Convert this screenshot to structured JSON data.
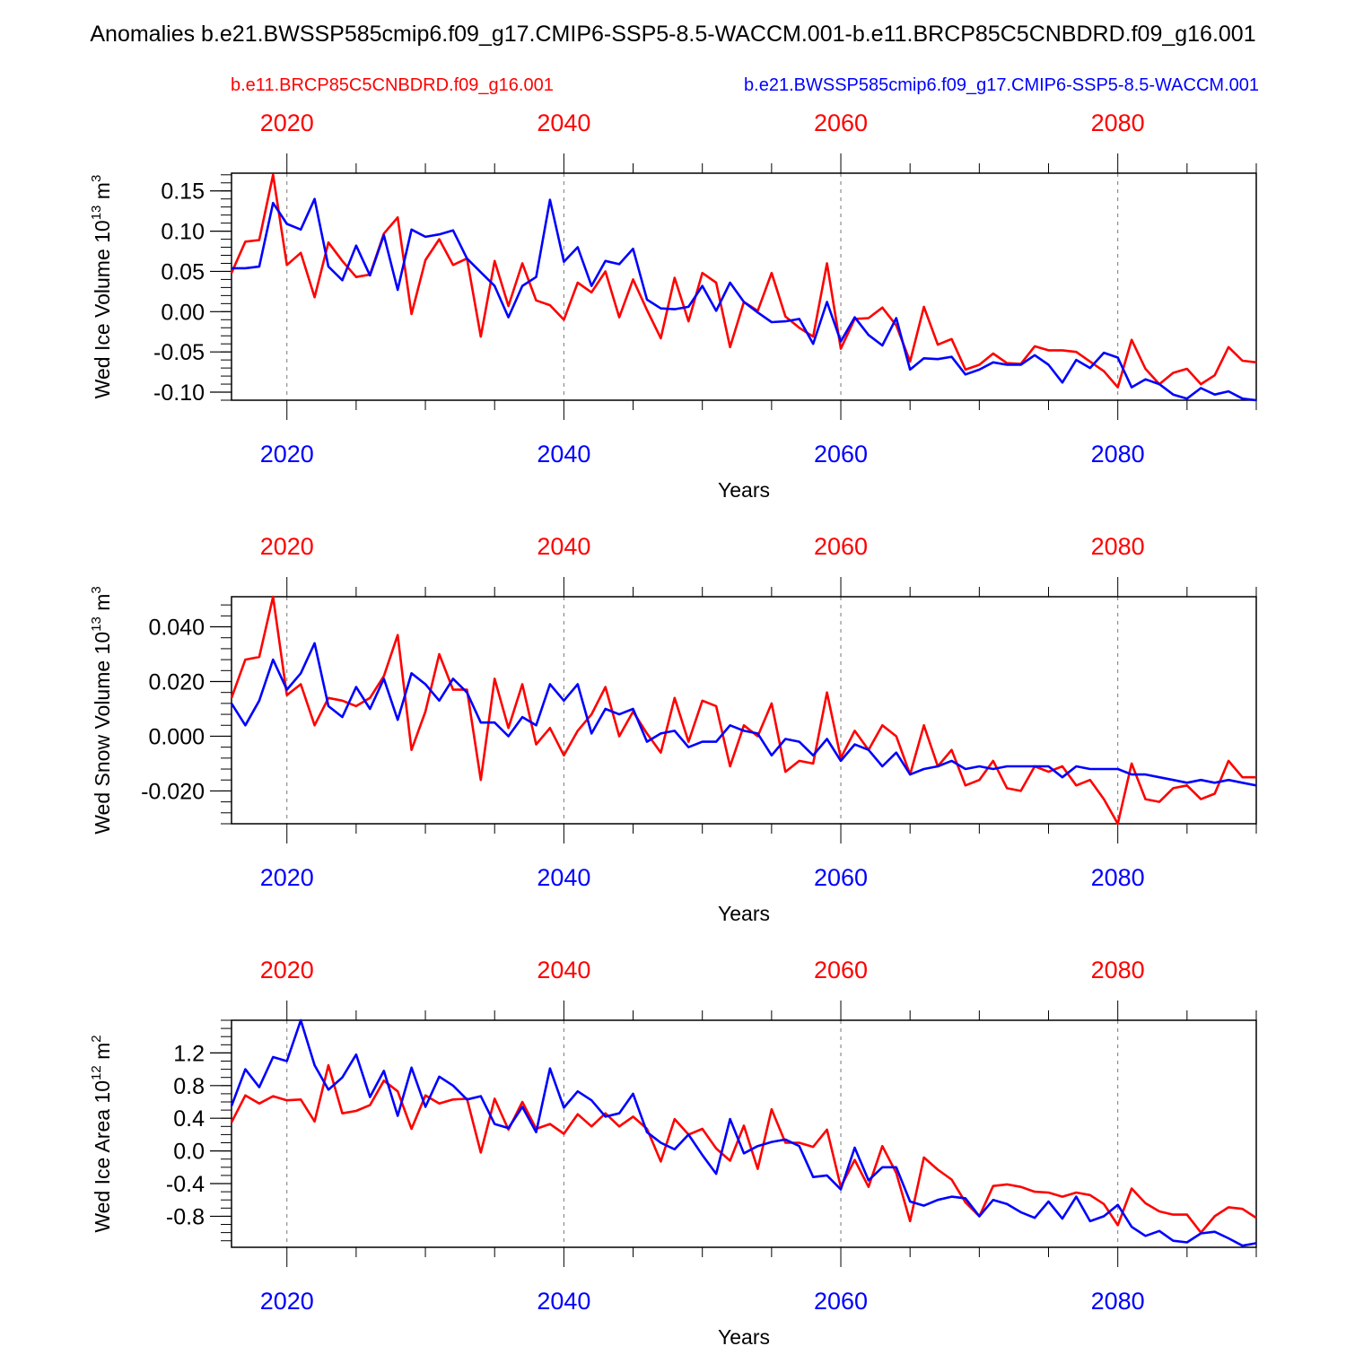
{
  "title": "Anomalies b.e21.BWSSP585cmip6.f09_g17.CMIP6-SSP5-8.5-WACCM.001-b.e11.BRCP85C5CNBDRD.f09_g16.001",
  "colors": {
    "red": "#ff0000",
    "blue": "#0000ff"
  },
  "chart_data": [
    {
      "type": "line",
      "ylabel": "Wed Ice Volume 10",
      "ylabel_exp": "13",
      "ylabel_unit": " m",
      "ylabel_unit_exp": "3",
      "xlabel": "Years",
      "xlim": [
        2016,
        2090
      ],
      "ylim": [
        -0.11,
        0.172
      ],
      "yticks": [
        -0.1,
        -0.05,
        0.0,
        0.05,
        0.1,
        0.15
      ],
      "ytick_labels": [
        "-0.10",
        "-0.05",
        "0.00",
        "0.05",
        "0.10",
        "0.15"
      ],
      "yminor": 0.01,
      "xticks": [
        2020,
        2040,
        2060,
        2080
      ],
      "xtick_labels_red": [
        "2020",
        "2040",
        "2060",
        "2080"
      ],
      "xtick_labels_blue": [
        "2020",
        "2040",
        "2060",
        "2080"
      ],
      "series": [
        {
          "name": "b.e11.BRCP85C5CNBDRD.f09_g16.001",
          "color": "red",
          "x0": 2016,
          "values": [
            0.048,
            0.087,
            0.089,
            0.17,
            0.058,
            0.073,
            0.018,
            0.086,
            0.063,
            0.043,
            0.046,
            0.097,
            0.117,
            -0.003,
            0.064,
            0.09,
            0.058,
            0.066,
            -0.031,
            0.063,
            0.007,
            0.06,
            0.014,
            0.008,
            -0.01,
            0.036,
            0.024,
            0.05,
            -0.007,
            0.04,
            0.002,
            -0.033,
            0.042,
            -0.012,
            0.048,
            0.036,
            -0.044,
            0.012,
            0.001,
            0.048,
            -0.006,
            -0.02,
            -0.031,
            0.06,
            -0.046,
            -0.009,
            -0.008,
            0.005,
            -0.017,
            -0.062,
            0.006,
            -0.041,
            -0.034,
            -0.072,
            -0.066,
            -0.052,
            -0.064,
            -0.065,
            -0.043,
            -0.048,
            -0.048,
            -0.05,
            -0.062,
            -0.074,
            -0.094,
            -0.035,
            -0.071,
            -0.09,
            -0.076,
            -0.071,
            -0.09,
            -0.079,
            -0.044,
            -0.061,
            -0.063
          ]
        },
        {
          "name": "b.e21.BWSSP585cmip6.f09_g17.CMIP6-SSP5-8.5-WACCM.001",
          "color": "blue",
          "x0": 2016,
          "values": [
            0.054,
            0.054,
            0.056,
            0.135,
            0.109,
            0.102,
            0.14,
            0.056,
            0.039,
            0.082,
            0.045,
            0.095,
            0.027,
            0.102,
            0.093,
            0.096,
            0.101,
            0.066,
            0.049,
            0.032,
            -0.007,
            0.032,
            0.043,
            0.139,
            0.062,
            0.08,
            0.032,
            0.063,
            0.059,
            0.078,
            0.015,
            0.004,
            0.003,
            0.006,
            0.032,
            0.001,
            0.036,
            0.012,
            -0.001,
            -0.013,
            -0.012,
            -0.009,
            -0.04,
            0.012,
            -0.037,
            -0.007,
            -0.029,
            -0.042,
            -0.008,
            -0.072,
            -0.058,
            -0.059,
            -0.056,
            -0.078,
            -0.072,
            -0.063,
            -0.066,
            -0.066,
            -0.054,
            -0.066,
            -0.088,
            -0.06,
            -0.07,
            -0.051,
            -0.057,
            -0.094,
            -0.084,
            -0.09,
            -0.103,
            -0.108,
            -0.095,
            -0.103,
            -0.099,
            -0.108,
            -0.11
          ]
        }
      ]
    },
    {
      "type": "line",
      "ylabel": "Wed Snow Volume 10",
      "ylabel_exp": "13",
      "ylabel_unit": " m",
      "ylabel_unit_exp": "3",
      "xlabel": "Years",
      "xlim": [
        2016,
        2090
      ],
      "ylim": [
        -0.032,
        0.051
      ],
      "yticks": [
        -0.02,
        0.0,
        0.02,
        0.04
      ],
      "ytick_labels": [
        "-0.020",
        "0.000",
        "0.020",
        "0.040"
      ],
      "yminor": 0.004,
      "xticks": [
        2020,
        2040,
        2060,
        2080
      ],
      "xtick_labels_red": [
        "2020",
        "2040",
        "2060",
        "2080"
      ],
      "xtick_labels_blue": [
        "2020",
        "2040",
        "2060",
        "2080"
      ],
      "series": [
        {
          "name": "b.e11.BRCP85C5CNBDRD.f09_g16.001",
          "color": "red",
          "x0": 2016,
          "values": [
            0.014,
            0.028,
            0.029,
            0.051,
            0.015,
            0.019,
            0.004,
            0.014,
            0.013,
            0.011,
            0.014,
            0.022,
            0.037,
            -0.005,
            0.009,
            0.03,
            0.017,
            0.017,
            -0.016,
            0.021,
            0.003,
            0.019,
            -0.003,
            0.003,
            -0.007,
            0.002,
            0.008,
            0.018,
            0.0,
            0.009,
            0.001,
            -0.006,
            0.014,
            -0.002,
            0.013,
            0.011,
            -0.011,
            0.004,
            0.0,
            0.012,
            -0.013,
            -0.009,
            -0.01,
            0.016,
            -0.008,
            0.002,
            -0.005,
            0.004,
            0.0,
            -0.014,
            0.004,
            -0.011,
            -0.005,
            -0.018,
            -0.016,
            -0.009,
            -0.019,
            -0.02,
            -0.011,
            -0.013,
            -0.011,
            -0.018,
            -0.016,
            -0.023,
            -0.032,
            -0.01,
            -0.023,
            -0.024,
            -0.019,
            -0.018,
            -0.023,
            -0.021,
            -0.009,
            -0.015,
            -0.015
          ]
        },
        {
          "name": "b.e21.BWSSP585cmip6.f09_g17.CMIP6-SSP5-8.5-WACCM.001",
          "color": "blue",
          "x0": 2016,
          "values": [
            0.012,
            0.004,
            0.013,
            0.028,
            0.017,
            0.023,
            0.034,
            0.011,
            0.007,
            0.018,
            0.01,
            0.021,
            0.006,
            0.023,
            0.019,
            0.013,
            0.021,
            0.016,
            0.005,
            0.005,
            0.0,
            0.007,
            0.004,
            0.019,
            0.013,
            0.019,
            0.001,
            0.01,
            0.008,
            0.01,
            -0.002,
            0.001,
            0.002,
            -0.004,
            -0.002,
            -0.002,
            0.004,
            0.002,
            0.001,
            -0.007,
            -0.001,
            -0.002,
            -0.007,
            -0.001,
            -0.009,
            -0.003,
            -0.005,
            -0.011,
            -0.006,
            -0.014,
            -0.012,
            -0.011,
            -0.009,
            -0.012,
            -0.011,
            -0.012,
            -0.011,
            -0.011,
            -0.011,
            -0.011,
            -0.015,
            -0.011,
            -0.012,
            -0.012,
            -0.012,
            -0.014,
            -0.014,
            -0.015,
            -0.016,
            -0.017,
            -0.016,
            -0.017,
            -0.016,
            -0.017,
            -0.018
          ]
        }
      ]
    },
    {
      "type": "line",
      "ylabel": "Wed Ice Area 10",
      "ylabel_exp": "12",
      "ylabel_unit": " m",
      "ylabel_unit_exp": "2",
      "xlabel": "Years",
      "xlim": [
        2016,
        2090
      ],
      "ylim": [
        -1.18,
        1.6
      ],
      "yticks": [
        -0.8,
        -0.4,
        0.0,
        0.4,
        0.8,
        1.2
      ],
      "ytick_labels": [
        "-0.8",
        "-0.4",
        "0.0",
        "0.4",
        "0.8",
        "1.2"
      ],
      "yminor": 0.1,
      "xticks": [
        2020,
        2040,
        2060,
        2080
      ],
      "xtick_labels_red": [
        "2020",
        "2040",
        "2060",
        "2080"
      ],
      "xtick_labels_blue": [
        "2020",
        "2040",
        "2060",
        "2080"
      ],
      "series": [
        {
          "name": "b.e11.BRCP85C5CNBDRD.f09_g16.001",
          "color": "red",
          "x0": 2016,
          "values": [
            0.35,
            0.68,
            0.58,
            0.67,
            0.62,
            0.63,
            0.36,
            1.05,
            0.46,
            0.49,
            0.56,
            0.86,
            0.73,
            0.27,
            0.68,
            0.58,
            0.63,
            0.64,
            -0.02,
            0.64,
            0.26,
            0.6,
            0.27,
            0.33,
            0.21,
            0.45,
            0.3,
            0.46,
            0.3,
            0.42,
            0.27,
            -0.13,
            0.39,
            0.2,
            0.27,
            0.03,
            -0.12,
            0.31,
            -0.22,
            0.51,
            0.1,
            0.1,
            0.05,
            0.26,
            -0.44,
            -0.11,
            -0.44,
            0.06,
            -0.27,
            -0.86,
            -0.08,
            -0.23,
            -0.35,
            -0.63,
            -0.8,
            -0.43,
            -0.41,
            -0.44,
            -0.5,
            -0.51,
            -0.56,
            -0.51,
            -0.54,
            -0.65,
            -0.91,
            -0.46,
            -0.64,
            -0.74,
            -0.78,
            -0.78,
            -1.0,
            -0.8,
            -0.69,
            -0.71,
            -0.82
          ]
        },
        {
          "name": "b.e21.BWSSP585cmip6.f09_g17.CMIP6-SSP5-8.5-WACCM.001",
          "color": "blue",
          "x0": 2016,
          "values": [
            0.55,
            1.0,
            0.78,
            1.15,
            1.1,
            1.6,
            1.05,
            0.75,
            0.9,
            1.18,
            0.66,
            0.98,
            0.43,
            1.02,
            0.54,
            0.91,
            0.8,
            0.63,
            0.67,
            0.33,
            0.28,
            0.54,
            0.23,
            1.01,
            0.53,
            0.73,
            0.62,
            0.42,
            0.46,
            0.7,
            0.23,
            0.1,
            0.02,
            0.2,
            -0.05,
            -0.28,
            0.39,
            -0.03,
            0.06,
            0.11,
            0.14,
            0.06,
            -0.32,
            -0.3,
            -0.47,
            0.04,
            -0.36,
            -0.2,
            -0.2,
            -0.62,
            -0.67,
            -0.6,
            -0.56,
            -0.58,
            -0.8,
            -0.6,
            -0.65,
            -0.75,
            -0.82,
            -0.62,
            -0.83,
            -0.56,
            -0.86,
            -0.8,
            -0.66,
            -0.93,
            -1.04,
            -0.98,
            -1.1,
            -1.12,
            -1.01,
            -0.99,
            -1.07,
            -1.16,
            -1.13
          ]
        }
      ]
    }
  ],
  "legend": {
    "red_name": "b.e11.BRCP85C5CNBDRD.f09_g16.001",
    "blue_name": "b.e21.BWSSP585cmip6.f09_g17.CMIP6-SSP5-8.5-WACCM.001"
  }
}
